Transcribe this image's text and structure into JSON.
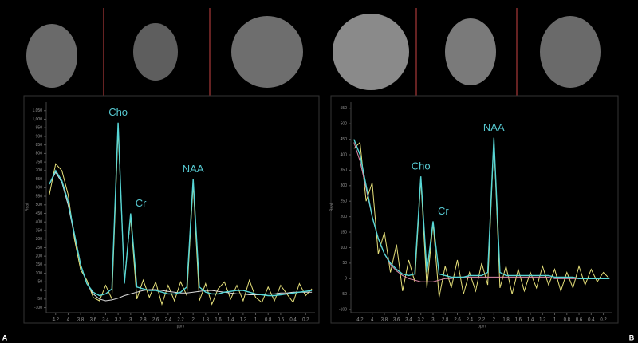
{
  "chart_data": [
    {
      "type": "line",
      "panel_label": "A",
      "ylabel": "Real",
      "xlabel": "ppm",
      "annotations": [
        "Cho",
        "Cr",
        "NAA"
      ],
      "x": [
        4.3,
        4.2,
        4.1,
        4.0,
        3.9,
        3.8,
        3.7,
        3.6,
        3.5,
        3.4,
        3.3,
        3.2,
        3.1,
        3.0,
        2.9,
        2.8,
        2.7,
        2.6,
        2.5,
        2.4,
        2.3,
        2.2,
        2.1,
        2.0,
        1.9,
        1.8,
        1.7,
        1.6,
        1.5,
        1.4,
        1.3,
        1.2,
        1.1,
        1.0,
        0.9,
        0.8,
        0.7,
        0.6,
        0.5,
        0.4,
        0.3,
        0.2,
        0.1
      ],
      "series": [
        {
          "color": "#e6e07a",
          "values": [
            560,
            740,
            700,
            560,
            300,
            120,
            60,
            -40,
            -60,
            30,
            -50,
            940,
            60,
            430,
            -50,
            60,
            -40,
            50,
            -80,
            30,
            -60,
            50,
            -30,
            620,
            -60,
            40,
            -80,
            10,
            50,
            -50,
            30,
            -60,
            60,
            -40,
            -70,
            20,
            -60,
            30,
            -20,
            -70,
            40,
            -30,
            10
          ]
        },
        {
          "color": "#dddddd",
          "values": [
            620,
            690,
            630,
            500,
            320,
            150,
            40,
            -20,
            -50,
            -60,
            -55,
            -45,
            -30,
            -20,
            -10,
            0,
            5,
            5,
            0,
            -5,
            -10,
            -15,
            -15,
            -10,
            -5,
            0,
            0,
            -5,
            -10,
            -15,
            -20,
            -20,
            -25,
            -25,
            -25,
            -20,
            -20,
            -15,
            -15,
            -10,
            -10,
            -10,
            -10
          ]
        },
        {
          "color": "#56d6d6",
          "values": [
            620,
            700,
            640,
            520,
            330,
            150,
            40,
            -10,
            -30,
            -20,
            10,
            980,
            40,
            450,
            20,
            10,
            0,
            0,
            -10,
            -20,
            -20,
            -10,
            20,
            650,
            20,
            -10,
            -20,
            -20,
            -10,
            -5,
            0,
            0,
            -10,
            -20,
            -25,
            -30,
            -30,
            -25,
            -20,
            -15,
            -10,
            -5,
            0
          ]
        }
      ],
      "xlim": [
        4.35,
        0.05
      ],
      "xticks": [
        4.2,
        4,
        3.8,
        3.6,
        3.4,
        3.2,
        3,
        2.8,
        2.6,
        2.4,
        2.2,
        2,
        1.8,
        1.6,
        1.4,
        1.2,
        1,
        0.8,
        0.6,
        0.4,
        0.2
      ],
      "ylim": [
        -130,
        1100
      ],
      "yticks": [
        -100,
        -50,
        0,
        50,
        100,
        150,
        200,
        250,
        300,
        350,
        400,
        450,
        500,
        550,
        600,
        650,
        700,
        750,
        800,
        850,
        900,
        950,
        {
          "value": 1000,
          "label": "1,000"
        },
        {
          "value": 1050,
          "label": "1,050"
        }
      ]
    },
    {
      "type": "line",
      "panel_label": "B",
      "ylabel": "Real",
      "xlabel": "ppm",
      "annotations": [
        "Cho",
        "Cr",
        "NAA"
      ],
      "x": [
        4.3,
        4.2,
        4.1,
        4.0,
        3.9,
        3.8,
        3.7,
        3.6,
        3.5,
        3.4,
        3.3,
        3.2,
        3.1,
        3.0,
        2.9,
        2.8,
        2.7,
        2.6,
        2.5,
        2.4,
        2.3,
        2.2,
        2.1,
        2.0,
        1.9,
        1.8,
        1.7,
        1.6,
        1.5,
        1.4,
        1.3,
        1.2,
        1.1,
        1.0,
        0.9,
        0.8,
        0.7,
        0.6,
        0.5,
        0.4,
        0.3,
        0.2,
        0.1
      ],
      "series": [
        {
          "color": "#e6e07a",
          "values": [
            420,
            440,
            250,
            310,
            80,
            150,
            20,
            110,
            -40,
            60,
            -10,
            320,
            -30,
            180,
            -60,
            40,
            -30,
            60,
            -50,
            20,
            -40,
            50,
            -20,
            450,
            -30,
            40,
            -50,
            30,
            -40,
            20,
            -30,
            40,
            -20,
            30,
            -40,
            20,
            -30,
            40,
            -20,
            30,
            -10,
            20,
            0
          ]
        },
        {
          "color": "#e08aa8",
          "values": [
            440,
            380,
            290,
            200,
            130,
            80,
            45,
            25,
            10,
            0,
            -5,
            -10,
            -10,
            -10,
            -5,
            0,
            0,
            5,
            5,
            5,
            5,
            5,
            5,
            5,
            5,
            5,
            5,
            5,
            5,
            5,
            5,
            5,
            5,
            0,
            0,
            0,
            0,
            0,
            0,
            0,
            0,
            0,
            0
          ]
        },
        {
          "color": "#56d6d6",
          "values": [
            450,
            400,
            300,
            200,
            130,
            80,
            50,
            30,
            15,
            10,
            15,
            330,
            20,
            185,
            15,
            10,
            5,
            5,
            5,
            10,
            10,
            10,
            20,
            455,
            20,
            10,
            10,
            10,
            10,
            10,
            10,
            10,
            10,
            5,
            5,
            5,
            5,
            0,
            0,
            0,
            0,
            0,
            0
          ]
        }
      ],
      "xlim": [
        4.35,
        0.05
      ],
      "xticks": [
        4.2,
        4,
        3.8,
        3.6,
        3.4,
        3.2,
        3,
        2.8,
        2.6,
        2.4,
        2.2,
        2,
        1.8,
        1.6,
        1.4,
        1.2,
        1,
        0.8,
        0.6,
        0.4,
        0.2
      ],
      "ylim": [
        -110,
        570
      ],
      "yticks": [
        -100,
        -50,
        0,
        50,
        100,
        150,
        200,
        250,
        300,
        350,
        400,
        450,
        500,
        550
      ]
    }
  ]
}
